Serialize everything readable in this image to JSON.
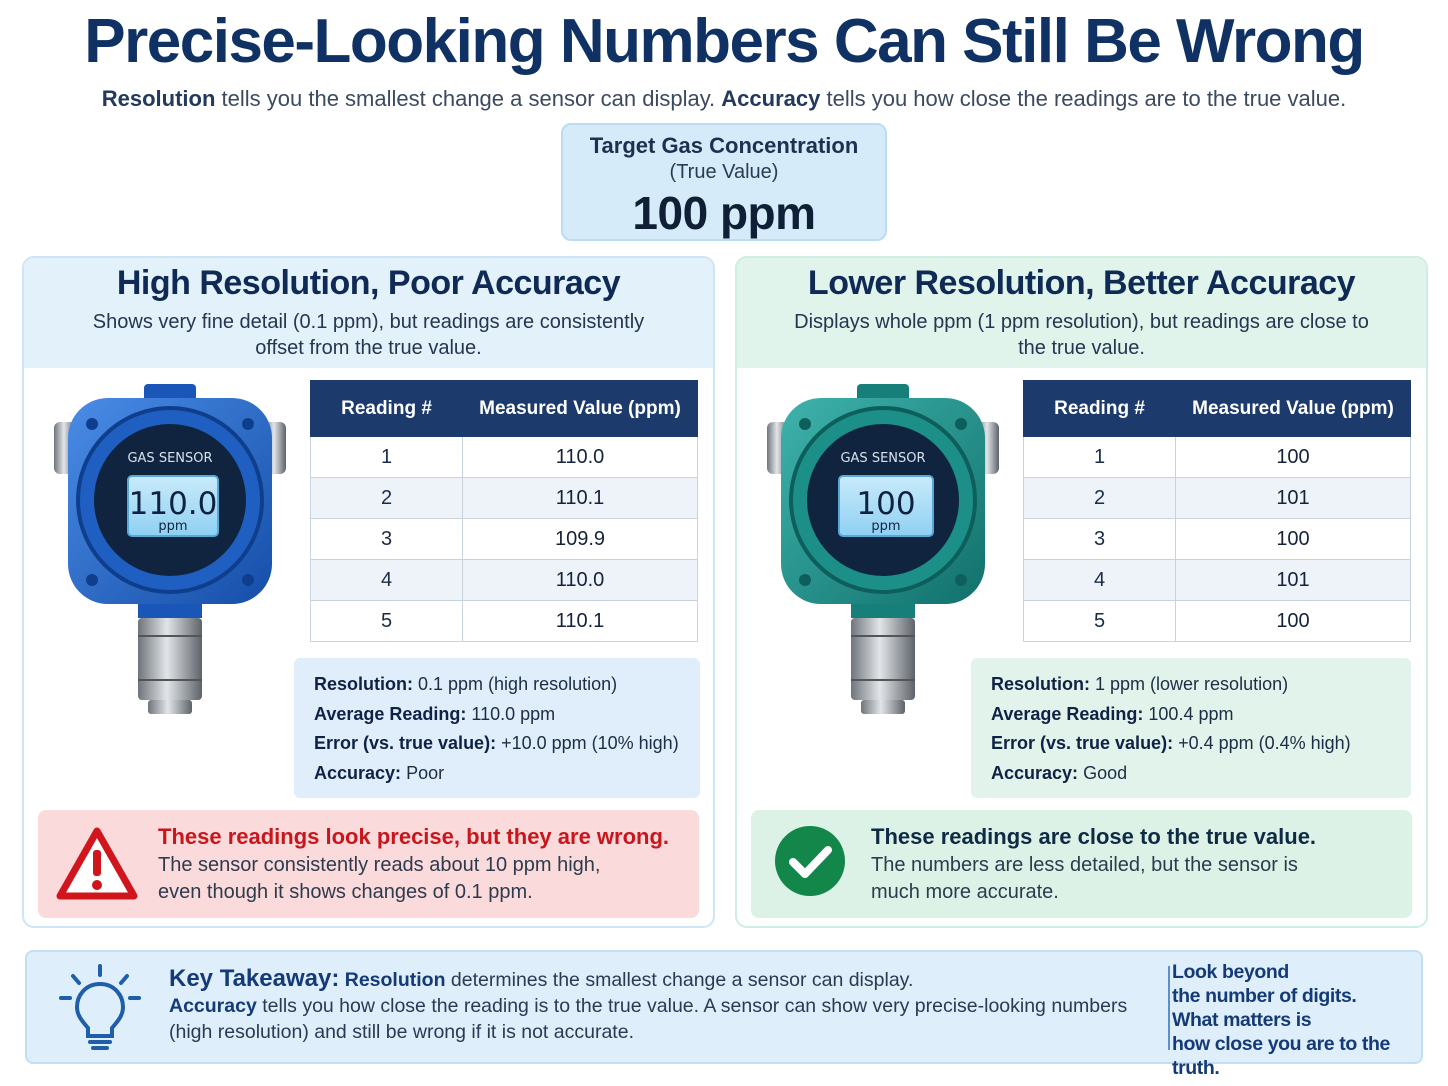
{
  "title": "Precise-Looking Numbers Can Still Be Wrong",
  "subtitle": {
    "resolution_term": "Resolution",
    "resolution_text": " tells you the smallest change a sensor can display. ",
    "accuracy_term": "Accuracy",
    "accuracy_text": " tells you how close the readings are to the true value."
  },
  "target": {
    "line1": "Target Gas Concentration",
    "line2": "(True Value)",
    "value": "100 ppm"
  },
  "panels": {
    "left": {
      "title": "High Resolution, Poor Accuracy",
      "description": "Shows very fine detail (0.1 ppm), but readings are consistently offset from the true value.",
      "sensor_label": "GAS SENSOR",
      "sensor_value": "110.0",
      "sensor_unit": "ppm",
      "sensor_color": "#1f63c9",
      "table": {
        "headers": [
          "Reading #",
          "Measured Value (ppm)"
        ],
        "rows": [
          [
            "1",
            "110.0"
          ],
          [
            "2",
            "110.1"
          ],
          [
            "3",
            "109.9"
          ],
          [
            "4",
            "110.0"
          ],
          [
            "5",
            "110.1"
          ]
        ]
      },
      "stats": {
        "resolution_label": "Resolution:",
        "resolution_value": "0.1 ppm (high resolution)",
        "average_label": "Average Reading:",
        "average_value": "110.0 ppm",
        "error_label": "Error (vs. true value):",
        "error_value": "+10.0 ppm (10% high)",
        "accuracy_label": "Accuracy:",
        "accuracy_value": "Poor"
      },
      "verdict": {
        "headline": "These readings look precise, but they are wrong.",
        "body": "The sensor consistently reads about 10 ppm high, even though it shows changes of 0.1 ppm.",
        "icon": "warning-triangle-icon",
        "icon_color": "#d0161c"
      }
    },
    "right": {
      "title": "Lower Resolution, Better Accuracy",
      "description": "Displays whole ppm (1 ppm resolution), but readings are close to the true value.",
      "sensor_label": "GAS SENSOR",
      "sensor_value": "100",
      "sensor_unit": "ppm",
      "sensor_color": "#1f9590",
      "table": {
        "headers": [
          "Reading #",
          "Measured Value (ppm)"
        ],
        "rows": [
          [
            "1",
            "100"
          ],
          [
            "2",
            "101"
          ],
          [
            "3",
            "100"
          ],
          [
            "4",
            "101"
          ],
          [
            "5",
            "100"
          ]
        ]
      },
      "stats": {
        "resolution_label": "Resolution:",
        "resolution_value": "1 ppm (lower resolution)",
        "average_label": "Average Reading:",
        "average_value": "100.4 ppm",
        "error_label": "Error (vs. true value):",
        "error_value": "+0.4 ppm (0.4% high)",
        "accuracy_label": "Accuracy:",
        "accuracy_value": "Good"
      },
      "verdict": {
        "headline": "These readings are close to the true value.",
        "body": "The numbers are less detailed, but the sensor is much more accurate.",
        "icon": "check-circle-icon",
        "icon_color": "#13864a"
      }
    }
  },
  "takeaway": {
    "label": "Key Takeaway:",
    "resolution_term": "Resolution",
    "line1_rest": " determines the smallest change a sensor can display.",
    "accuracy_term": "Accuracy",
    "line2_rest": " tells you how close the reading is to the true value. A sensor can show very precise-looking numbers (high resolution) and still be wrong if it is not accurate.",
    "side_lines": [
      "Look beyond",
      "the number of digits.",
      "What matters is",
      "how close you are to the truth."
    ],
    "icon": "lightbulb-icon"
  }
}
